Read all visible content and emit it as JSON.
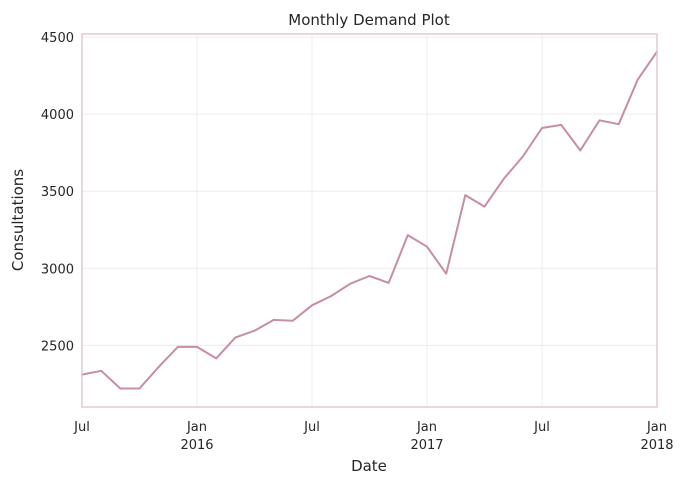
{
  "chart_data": {
    "type": "line",
    "title": "Monthly Demand Plot",
    "xlabel": "Date",
    "ylabel": "Consultations",
    "x": [
      "2015-07",
      "2015-08",
      "2015-09",
      "2015-10",
      "2015-11",
      "2015-12",
      "2016-01",
      "2016-02",
      "2016-03",
      "2016-04",
      "2016-05",
      "2016-06",
      "2016-07",
      "2016-08",
      "2016-09",
      "2016-10",
      "2016-11",
      "2016-12",
      "2017-01",
      "2017-02",
      "2017-03",
      "2017-04",
      "2017-05",
      "2017-06",
      "2017-07",
      "2017-08",
      "2017-09",
      "2017-10",
      "2017-11",
      "2017-12",
      "2018-01"
    ],
    "series": [
      {
        "values": [
          2310,
          2335,
          2220,
          2220,
          2360,
          2490,
          2490,
          2415,
          2550,
          2595,
          2665,
          2660,
          2760,
          2820,
          2900,
          2950,
          2905,
          3215,
          3140,
          2965,
          3475,
          3400,
          3580,
          3725,
          3910,
          3930,
          3765,
          3960,
          3935,
          4225,
          4405
        ],
        "color": "#c88ea0"
      }
    ],
    "xlim": [
      "2015-07",
      "2018-01"
    ],
    "ylim": [
      2100,
      4520
    ],
    "x_ticks": [
      {
        "date": "2015-07",
        "label": "Jul",
        "sublabel": ""
      },
      {
        "date": "2016-01",
        "label": "Jan",
        "sublabel": "2016"
      },
      {
        "date": "2016-07",
        "label": "Jul",
        "sublabel": ""
      },
      {
        "date": "2017-01",
        "label": "Jan",
        "sublabel": "2017"
      },
      {
        "date": "2017-07",
        "label": "Jul",
        "sublabel": ""
      },
      {
        "date": "2018-01",
        "label": "Jan",
        "sublabel": "2018"
      }
    ],
    "y_ticks": [
      2500,
      3000,
      3500,
      4000,
      4500
    ],
    "grid": true,
    "legend": "none",
    "frame_color": "#e6c8d2"
  }
}
